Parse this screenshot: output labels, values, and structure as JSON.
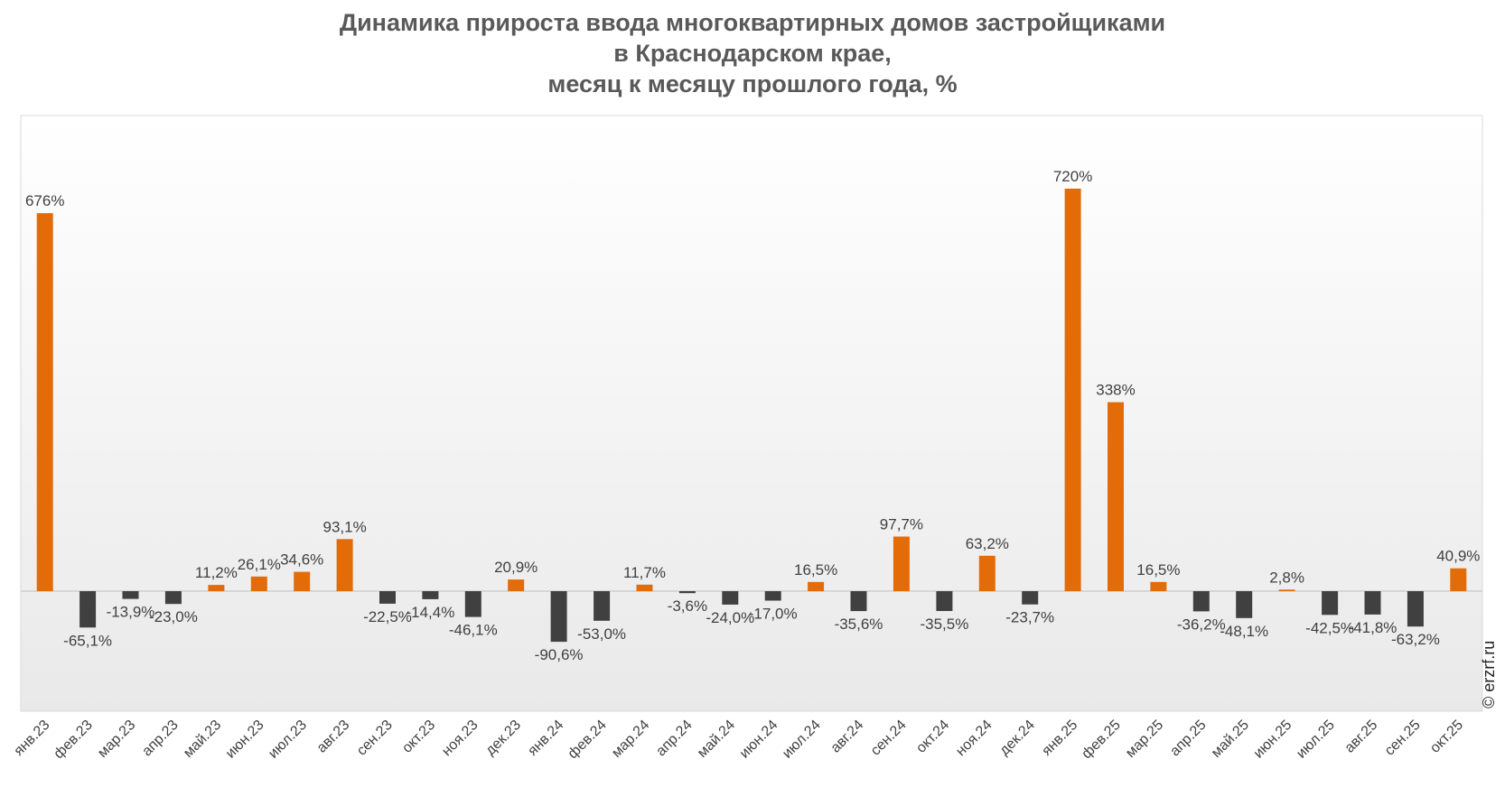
{
  "chart_data": {
    "type": "bar",
    "title_lines": [
      "Динамика прироста ввода многоквартирных домов застройщиками",
      "в Краснодарском крае,",
      "месяц к месяцу прошлого года, %"
    ],
    "xlabel": "",
    "ylabel": "",
    "grid": false,
    "categories": [
      "янв.23",
      "фев.23",
      "мар.23",
      "апр.23",
      "май.23",
      "июн.23",
      "июл.23",
      "авг.23",
      "сен.23",
      "окт.23",
      "ноя.23",
      "дек.23",
      "янв.24",
      "фев.24",
      "мар.24",
      "апр.24",
      "май.24",
      "июн.24",
      "июл.24",
      "авг.24",
      "сен.24",
      "окт.24",
      "ноя.24",
      "дек.24",
      "янв.25",
      "фев.25",
      "мар.25",
      "апр.25",
      "май.25",
      "июн.25",
      "июл.25",
      "авг.25",
      "сен.25",
      "окт.25"
    ],
    "values": [
      676,
      -65.1,
      -13.9,
      -23.0,
      11.2,
      26.1,
      34.6,
      93.1,
      -22.5,
      -14.4,
      -46.1,
      20.9,
      -90.6,
      -53.0,
      11.7,
      -3.6,
      -24.0,
      -17.0,
      16.5,
      -35.6,
      97.7,
      -35.5,
      63.2,
      -23.7,
      720,
      338,
      16.5,
      -36.2,
      -48.1,
      2.8,
      -42.5,
      -41.8,
      -63.2,
      40.9
    ],
    "labels": [
      "676%",
      "-65,1%",
      "-13,9%",
      "-23,0%",
      "11,2%",
      "26,1%",
      "34,6%",
      "93,1%",
      "-22,5%",
      "-14,4%",
      "-46,1%",
      "20,9%",
      "-90,6%",
      "-53,0%",
      "11,7%",
      "-3,6%",
      "-24,0%",
      "-17,0%",
      "16,5%",
      "-35,6%",
      "97,7%",
      "-35,5%",
      "63,2%",
      "-23,7%",
      "720%",
      "338%",
      "16,5%",
      "-36,2%",
      "-48,1%",
      "2,8%",
      "-42,5%",
      "-41,8%",
      "-63,2%",
      "40,9%"
    ],
    "ylim": [
      -200,
      800
    ],
    "colors": {
      "positive": "#E36C09",
      "negative": "#404040"
    }
  },
  "watermark": "© erzrf.ru"
}
